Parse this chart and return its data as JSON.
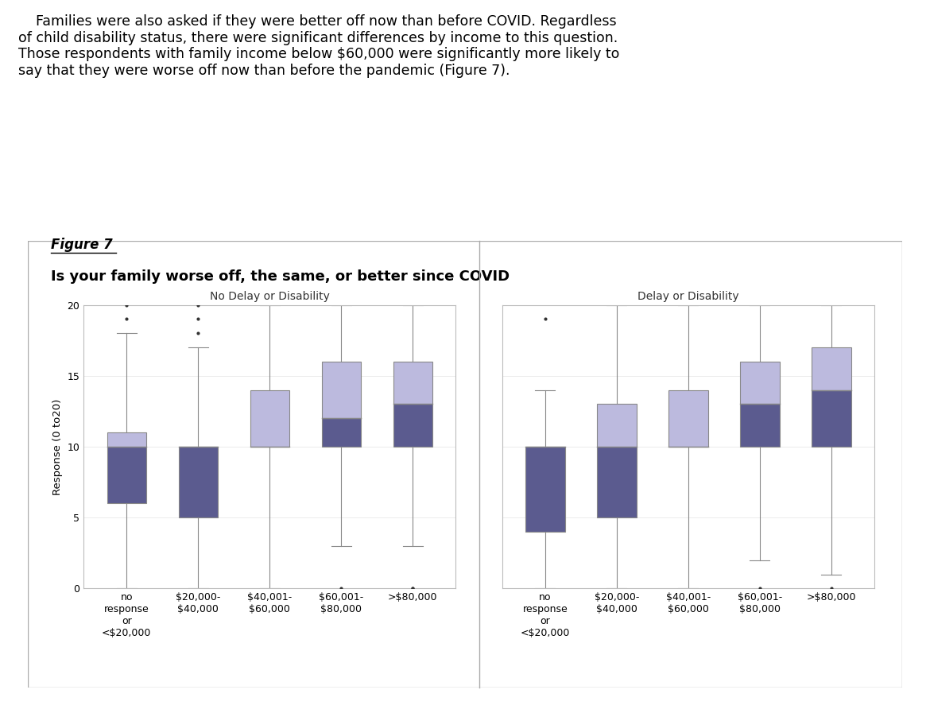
{
  "title": "Is your family worse off, the same, or better since COVID",
  "figure_label": "Figure 7",
  "ylabel": "Response (0 to20)",
  "subtitle_left": "No Delay or Disability",
  "subtitle_right": "Delay or Disability",
  "x_labels": [
    "no\nresponse\nor\n<$20,000",
    "$20,000-\n$40,000",
    "$40,001-\n$60,000",
    "$60,001-\n$80,000",
    ">$80,000"
  ],
  "box_color_dark": "#5B5B8F",
  "box_color_light": "#BCBADE",
  "ylim": [
    0,
    20
  ],
  "yticks": [
    0,
    5,
    10,
    15,
    20
  ],
  "paragraph_text": "    Families were also asked if they were better off now than before COVID. Regardless\nof child disability status, there were significant differences by income to this question.\nThose respondents with family income below $60,000 were significantly more likely to\nsay that they were worse off now than before the pandemic (Figure 7).",
  "boxes": {
    "no_delay": [
      {
        "whisker_low": 0,
        "q1": 6,
        "median": 10,
        "q3": 11,
        "whisker_high": 18,
        "fliers_high": [
          19,
          20
        ],
        "fliers_low": []
      },
      {
        "whisker_low": 0,
        "q1": 5,
        "median": 10,
        "q3": 10,
        "whisker_high": 17,
        "fliers_high": [
          18,
          19,
          20
        ],
        "fliers_low": []
      },
      {
        "whisker_low": 0,
        "q1": 10,
        "median": 10,
        "q3": 14,
        "whisker_high": 20,
        "fliers_high": [],
        "fliers_low": []
      },
      {
        "whisker_low": 3,
        "q1": 10,
        "median": 12,
        "q3": 16,
        "whisker_high": 20,
        "fliers_high": [],
        "fliers_low": [
          0
        ]
      },
      {
        "whisker_low": 3,
        "q1": 10,
        "median": 13,
        "q3": 16,
        "whisker_high": 20,
        "fliers_high": [],
        "fliers_low": [
          0,
          0
        ]
      }
    ],
    "delay": [
      {
        "whisker_low": 0,
        "q1": 4,
        "median": 10,
        "q3": 10,
        "whisker_high": 14,
        "fliers_high": [
          19
        ],
        "fliers_low": []
      },
      {
        "whisker_low": 0,
        "q1": 5,
        "median": 10,
        "q3": 13,
        "whisker_high": 20,
        "fliers_high": [],
        "fliers_low": []
      },
      {
        "whisker_low": 0,
        "q1": 10,
        "median": 10,
        "q3": 14,
        "whisker_high": 20,
        "fliers_high": [],
        "fliers_low": []
      },
      {
        "whisker_low": 2,
        "q1": 10,
        "median": 13,
        "q3": 16,
        "whisker_high": 20,
        "fliers_high": [],
        "fliers_low": [
          0
        ]
      },
      {
        "whisker_low": 1,
        "q1": 10,
        "median": 14,
        "q3": 17,
        "whisker_high": 20,
        "fliers_high": [],
        "fliers_low": [
          0
        ]
      }
    ]
  }
}
